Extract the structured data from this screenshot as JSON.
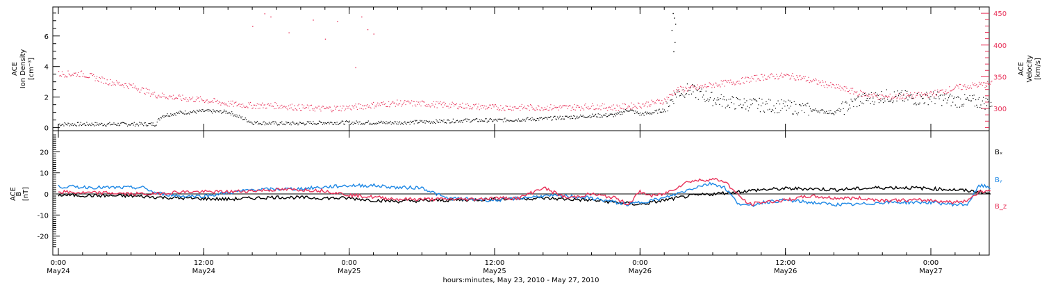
{
  "colors": {
    "black": "#000000",
    "pink": "#e8325a",
    "blue": "#1e88e5"
  },
  "chart_data": [
    {
      "type": "scatter",
      "panel": "top",
      "ylabel_left": [
        "ACE",
        "Ion Density",
        "[cm⁻³]"
      ],
      "ylabel_right": [
        "ACE",
        "Velocity",
        "[km/s]"
      ],
      "y_left_ticks": [
        "0",
        "2",
        "4",
        "6"
      ],
      "y_right_ticks": [
        "300",
        "350",
        "400",
        "450"
      ],
      "ylim_left": [
        -0.2,
        7.9
      ],
      "ylim_right": [
        265,
        460
      ],
      "series": [
        {
          "axis": "left",
          "color": "black",
          "points_hours": [
            [
              0,
              0.25
            ],
            [
              4,
              0.25
            ],
            [
              8,
              0.25
            ],
            [
              8.5,
              0.8
            ],
            [
              10,
              1.0
            ],
            [
              12,
              1.1
            ],
            [
              14,
              1.05
            ],
            [
              16,
              0.35
            ],
            [
              18,
              0.3
            ],
            [
              20,
              0.3
            ],
            [
              22,
              0.35
            ],
            [
              24,
              0.35
            ],
            [
              26,
              0.35
            ],
            [
              28,
              0.35
            ],
            [
              30,
              0.4
            ],
            [
              32,
              0.45
            ],
            [
              34,
              0.5
            ],
            [
              36,
              0.5
            ],
            [
              38,
              0.55
            ],
            [
              40,
              0.6
            ],
            [
              42,
              0.7
            ],
            [
              44,
              0.8
            ],
            [
              46,
              0.85
            ],
            [
              47,
              1.2
            ],
            [
              48,
              0.9
            ],
            [
              49,
              1.0
            ],
            [
              50,
              1.2
            ],
            [
              51,
              2.3
            ],
            [
              52,
              2.5
            ],
            [
              53,
              2.2
            ],
            [
              54,
              1.9
            ],
            [
              56,
              1.6
            ],
            [
              58,
              1.5
            ],
            [
              60,
              1.4
            ],
            [
              62,
              1.2
            ],
            [
              64,
              1.0
            ],
            [
              66,
              1.8
            ],
            [
              68,
              2.1
            ],
            [
              70,
              2.0
            ],
            [
              71,
              1.9
            ],
            [
              72,
              2.0
            ],
            [
              74,
              1.8
            ],
            [
              76,
              1.7
            ],
            [
              77,
              1.6
            ]
          ]
        },
        {
          "axis": "right",
          "color": "pink",
          "points_hours": [
            [
              0,
              355
            ],
            [
              2,
              355
            ],
            [
              4,
              343
            ],
            [
              6,
              336
            ],
            [
              8,
              322
            ],
            [
              10,
              317
            ],
            [
              12,
              314
            ],
            [
              14,
              308
            ],
            [
              16,
              305
            ],
            [
              18,
              305
            ],
            [
              20,
              302
            ],
            [
              22,
              300
            ],
            [
              24,
              302
            ],
            [
              26,
              306
            ],
            [
              28,
              309
            ],
            [
              30,
              308
            ],
            [
              32,
              306
            ],
            [
              34,
              304
            ],
            [
              36,
              302
            ],
            [
              38,
              302
            ],
            [
              40,
              302
            ],
            [
              42,
              302
            ],
            [
              44,
              304
            ],
            [
              46,
              302
            ],
            [
              48,
              306
            ],
            [
              49,
              309
            ],
            [
              50,
              313
            ],
            [
              51,
              330
            ],
            [
              52,
              332
            ],
            [
              53,
              334
            ],
            [
              54,
              338
            ],
            [
              56,
              343
            ],
            [
              58,
              350
            ],
            [
              60,
              352
            ],
            [
              61,
              350
            ],
            [
              62,
              345
            ],
            [
              64,
              335
            ],
            [
              66,
              325
            ],
            [
              68,
              318
            ],
            [
              70,
              320
            ],
            [
              72,
              323
            ],
            [
              74,
              333
            ],
            [
              76,
              338
            ],
            [
              77,
              339
            ]
          ]
        }
      ]
    },
    {
      "type": "line",
      "panel": "bottom",
      "ylabel_left": [
        "ACE",
        "B",
        "[nT]"
      ],
      "y_ticks": [
        "20",
        "10",
        "0",
        "-10",
        "-20"
      ],
      "ylim": [
        -28,
        28
      ],
      "series": [
        {
          "name": "Bₓ",
          "color": "black",
          "points_hours": [
            [
              0,
              -0.5
            ],
            [
              3,
              -0.8
            ],
            [
              6,
              -1
            ],
            [
              8,
              -1.5
            ],
            [
              10,
              -2
            ],
            [
              14,
              -2.5
            ],
            [
              18,
              -1.5
            ],
            [
              22,
              -2
            ],
            [
              24,
              -2
            ],
            [
              26,
              -3
            ],
            [
              28,
              -3.5
            ],
            [
              32,
              -3
            ],
            [
              36,
              -2.5
            ],
            [
              40,
              -2
            ],
            [
              44,
              -3
            ],
            [
              46,
              -4
            ],
            [
              48,
              -5
            ],
            [
              50,
              -3
            ],
            [
              52,
              -1
            ],
            [
              54,
              0
            ],
            [
              56,
              1
            ],
            [
              58,
              2
            ],
            [
              60,
              2.5
            ],
            [
              62,
              2.5
            ],
            [
              64,
              2
            ],
            [
              66,
              2.5
            ],
            [
              68,
              3
            ],
            [
              70,
              3
            ],
            [
              72,
              2.5
            ],
            [
              74,
              2
            ],
            [
              76,
              1
            ],
            [
              77,
              0
            ]
          ]
        },
        {
          "name": "Bᵧ",
          "color": "blue",
          "points_hours": [
            [
              0,
              3.5
            ],
            [
              4,
              3
            ],
            [
              7,
              3
            ],
            [
              8,
              0.5
            ],
            [
              10,
              -1
            ],
            [
              12,
              -1
            ],
            [
              16,
              2
            ],
            [
              20,
              2.5
            ],
            [
              24,
              4
            ],
            [
              26,
              4
            ],
            [
              28,
              3
            ],
            [
              30,
              3
            ],
            [
              32,
              -2
            ],
            [
              36,
              -3
            ],
            [
              40,
              -1
            ],
            [
              42,
              -1
            ],
            [
              44,
              -2
            ],
            [
              46,
              -4
            ],
            [
              47,
              -5
            ],
            [
              48,
              -4
            ],
            [
              50,
              -2
            ],
            [
              52,
              2
            ],
            [
              53,
              4
            ],
            [
              54,
              5
            ],
            [
              55,
              3
            ],
            [
              56,
              -4
            ],
            [
              57,
              -6
            ],
            [
              58,
              -4
            ],
            [
              60,
              -3
            ],
            [
              62,
              -4
            ],
            [
              64,
              -5
            ],
            [
              66,
              -5
            ],
            [
              68,
              -4
            ],
            [
              70,
              -4
            ],
            [
              72,
              -4
            ],
            [
              74,
              -5
            ],
            [
              75,
              -5
            ],
            [
              76,
              4
            ],
            [
              77,
              3
            ]
          ]
        },
        {
          "name": "B_z",
          "color": "pink",
          "points_hours": [
            [
              0,
              1
            ],
            [
              2,
              0.5
            ],
            [
              4,
              0.5
            ],
            [
              6,
              0
            ],
            [
              8,
              0
            ],
            [
              10,
              1
            ],
            [
              12,
              1
            ],
            [
              14,
              1
            ],
            [
              16,
              1.5
            ],
            [
              18,
              2
            ],
            [
              20,
              2
            ],
            [
              22,
              1.5
            ],
            [
              24,
              -0.5
            ],
            [
              26,
              -1.5
            ],
            [
              28,
              -2.5
            ],
            [
              30,
              -2.5
            ],
            [
              32,
              -2.5
            ],
            [
              34,
              -2.5
            ],
            [
              36,
              -2
            ],
            [
              38,
              -2
            ],
            [
              40,
              3
            ],
            [
              42,
              -2
            ],
            [
              44,
              0
            ],
            [
              46,
              -2
            ],
            [
              47,
              -5
            ],
            [
              48,
              1
            ],
            [
              49,
              -1
            ],
            [
              50,
              0
            ],
            [
              52,
              6
            ],
            [
              54,
              7
            ],
            [
              55,
              6
            ],
            [
              56,
              0
            ],
            [
              57,
              -5
            ],
            [
              58,
              -4
            ],
            [
              60,
              -3
            ],
            [
              62,
              -1
            ],
            [
              64,
              -2
            ],
            [
              66,
              -2
            ],
            [
              68,
              -3
            ],
            [
              70,
              -3
            ],
            [
              72,
              -3
            ],
            [
              74,
              -4
            ],
            [
              75,
              -3
            ],
            [
              76,
              1
            ],
            [
              77,
              2
            ]
          ]
        }
      ]
    }
  ],
  "x_axis": {
    "tick_labels_top": [
      "0:00",
      "12:00",
      "0:00",
      "12:00",
      "0:00",
      "12:00",
      "0:00"
    ],
    "tick_labels_bottom": [
      "May24",
      "May24",
      "May25",
      "May25",
      "May26",
      "May26",
      "May27"
    ],
    "title": "hours:minutes, May 23, 2010 - May 27, 2010"
  }
}
